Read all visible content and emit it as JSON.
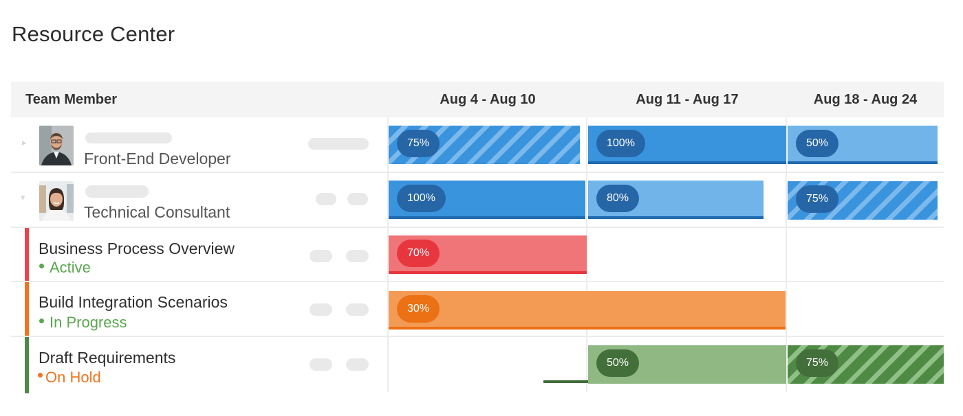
{
  "page_title": "Resource Center",
  "header": {
    "member_label": "Team Member",
    "weeks": [
      "Aug 4 - Aug 10",
      "Aug 11 - Aug 17",
      "Aug 18 - Aug 24"
    ]
  },
  "members": [
    {
      "role": "Front-End Developer",
      "allocations": [
        {
          "label": "75%",
          "pattern": "striped"
        },
        {
          "label": "100%",
          "pattern": "solid"
        },
        {
          "label": "50%",
          "pattern": "light"
        }
      ]
    },
    {
      "role": "Technical Consultant",
      "allocations": [
        {
          "label": "100%",
          "pattern": "solid"
        },
        {
          "label": "80%",
          "pattern": "light"
        },
        {
          "label": "75%",
          "pattern": "striped"
        }
      ]
    }
  ],
  "tasks": [
    {
      "name": "Business Process Overview",
      "status": "Active",
      "status_color": "#5aa64f",
      "accent": "#e8454b",
      "bar_label": "70%"
    },
    {
      "name": "Build Integration Scenarios",
      "status": "In Progress",
      "status_color": "#5aa64f",
      "accent": "#f0741e",
      "bar_label": "30%"
    },
    {
      "name": "Draft Requirements",
      "status": "On Hold",
      "status_color": "#f0741e",
      "accent": "#4e8a45",
      "bar_label_1": "50%",
      "bar_label_2": "75%"
    }
  ],
  "colors": {
    "blue": "#3a93dd",
    "blue_light": "#71b4ea",
    "blue_dark": "#1f6ab0",
    "pill_blue": "#2666a7",
    "red": "#f07578",
    "red_pill": "#e8363f",
    "orange": "#f39b55",
    "orange_pill": "#ec7014",
    "green": "#8fb883",
    "green_dark": "#3e6b37",
    "green_pill": "#426f3a"
  }
}
